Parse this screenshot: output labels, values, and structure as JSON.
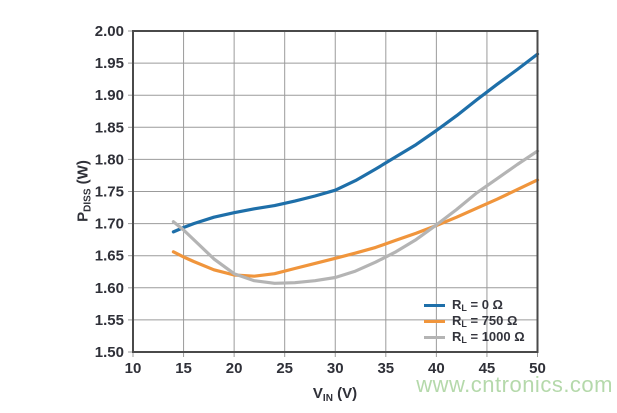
{
  "watermark": {
    "text": "www.cntronics.com",
    "color": "#b5d9ab"
  },
  "chart_data": {
    "type": "line",
    "title": "",
    "xlabel": "VIN (V)",
    "ylabel": "PDISS (W)",
    "xlabel_base": "V",
    "xlabel_sub": "IN",
    "xlabel_unit": " (V)",
    "ylabel_base": "P",
    "ylabel_sub": "DISS",
    "ylabel_unit": " (W)",
    "xlim": [
      10,
      50
    ],
    "ylim": [
      1.5,
      2.0
    ],
    "xticks": [
      10,
      15,
      20,
      25,
      30,
      35,
      40,
      45,
      50
    ],
    "yticks": [
      1.5,
      1.55,
      1.6,
      1.65,
      1.7,
      1.75,
      1.8,
      1.85,
      1.9,
      1.95,
      2.0
    ],
    "grid": true,
    "legend_position": "inside-bottom-right",
    "frame_color": "#4a4a4a",
    "grid_color": "#9b9b9b",
    "tick_label_color": "#2f3038",
    "series": [
      {
        "name": "RL = 0 Ω",
        "label_base": "R",
        "label_sub": "L",
        "label_rest": " = 0 Ω",
        "color": "#1e6fa9",
        "x": [
          14,
          15,
          16,
          18,
          20,
          22,
          24,
          26,
          28,
          30,
          32,
          34,
          36,
          38,
          40,
          42,
          44,
          46,
          48,
          50
        ],
        "y": [
          1.687,
          1.694,
          1.7,
          1.71,
          1.717,
          1.723,
          1.728,
          1.735,
          1.743,
          1.752,
          1.767,
          1.785,
          1.804,
          1.823,
          1.845,
          1.868,
          1.893,
          1.917,
          1.94,
          1.964
        ]
      },
      {
        "name": "RL = 750 Ω",
        "label_base": "R",
        "label_sub": "L",
        "label_rest": " = 750 Ω",
        "color": "#f0953c",
        "x": [
          14,
          15,
          16,
          18,
          20,
          22,
          24,
          26,
          28,
          30,
          32,
          34,
          36,
          38,
          40,
          42,
          44,
          46,
          48,
          50
        ],
        "y": [
          1.656,
          1.648,
          1.641,
          1.628,
          1.62,
          1.618,
          1.622,
          1.63,
          1.638,
          1.646,
          1.654,
          1.663,
          1.674,
          1.685,
          1.697,
          1.71,
          1.724,
          1.738,
          1.753,
          1.768
        ]
      },
      {
        "name": "RL = 1000 Ω",
        "label_base": "R",
        "label_sub": "L",
        "label_rest": " = 1000 Ω",
        "color": "#b4b4b4",
        "x": [
          14,
          15,
          16,
          18,
          20,
          22,
          24,
          26,
          28,
          30,
          32,
          34,
          36,
          38,
          40,
          42,
          44,
          46,
          48,
          50
        ],
        "y": [
          1.703,
          1.69,
          1.675,
          1.645,
          1.622,
          1.611,
          1.607,
          1.608,
          1.611,
          1.616,
          1.626,
          1.64,
          1.656,
          1.675,
          1.698,
          1.722,
          1.748,
          1.77,
          1.792,
          1.813
        ]
      }
    ]
  }
}
